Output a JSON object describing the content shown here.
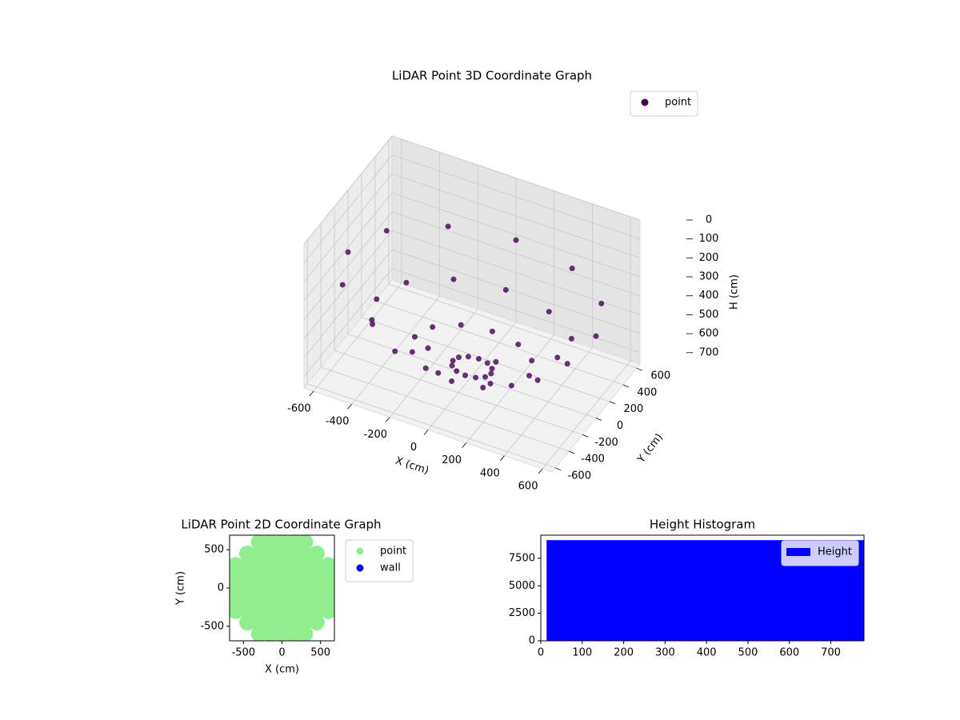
{
  "chart_data": [
    {
      "type": "scatter3d",
      "title": "LiDAR Point 3D Coordinate Graph",
      "xlabel": "X (cm)",
      "ylabel": "Y (cm)",
      "zlabel": "H (cm)",
      "xlim": [
        -650,
        650
      ],
      "ylim": [
        -650,
        650
      ],
      "zlim": [
        760,
        0
      ],
      "xticks": [
        -600,
        -400,
        -200,
        0,
        200,
        400,
        600
      ],
      "yticks": [
        -600,
        -400,
        -200,
        0,
        200,
        400,
        600
      ],
      "zticks": [
        0,
        100,
        200,
        300,
        400,
        500,
        600,
        700
      ],
      "grid": true,
      "legend": "upper right",
      "series": [
        {
          "name": "point",
          "color": "#440154",
          "x": [
            100,
            87,
            50,
            0,
            -50,
            -87,
            -100,
            -87,
            -50,
            0,
            50,
            87,
            300,
            260,
            150,
            0,
            -150,
            -260,
            -300,
            -260,
            -150,
            0,
            150,
            260,
            500,
            433,
            250,
            0,
            -250,
            -433,
            -500,
            -433,
            -250,
            0,
            250,
            433,
            650,
            563,
            325,
            0,
            -325,
            -563,
            -650,
            -563,
            -325,
            0,
            325,
            563
          ],
          "y": [
            0,
            50,
            87,
            100,
            87,
            50,
            0,
            -50,
            -87,
            -100,
            -87,
            -50,
            0,
            150,
            260,
            300,
            260,
            150,
            0,
            -150,
            -260,
            -300,
            -260,
            -150,
            0,
            250,
            433,
            500,
            433,
            250,
            0,
            -250,
            -433,
            -500,
            -433,
            -250,
            0,
            325,
            563,
            650,
            563,
            325,
            0,
            -325,
            -563,
            -650,
            -563,
            -325
          ],
          "z": [
            713,
            713,
            713,
            713,
            713,
            713,
            713,
            713,
            713,
            713,
            713,
            713,
            656,
            656,
            656,
            656,
            656,
            656,
            656,
            656,
            656,
            656,
            656,
            656,
            525,
            525,
            525,
            525,
            525,
            525,
            525,
            525,
            525,
            525,
            525,
            525,
            328,
            328,
            328,
            328,
            328,
            328,
            328,
            328,
            328,
            328,
            328,
            328
          ]
        }
      ]
    },
    {
      "type": "scatter",
      "title": "LiDAR Point 2D Coordinate Graph",
      "xlabel": "X (cm)",
      "ylabel": "Y (cm)",
      "xlim": [
        -680,
        680
      ],
      "ylim": [
        -690,
        690
      ],
      "xticks": [
        -500,
        0,
        500
      ],
      "yticks": [
        -500,
        0,
        500
      ],
      "legend": "outside right",
      "series": [
        {
          "name": "point",
          "color": "#90ee90",
          "x": [
            -300,
            -150,
            0,
            150,
            300,
            -450,
            -300,
            -150,
            0,
            150,
            300,
            450,
            -600,
            -450,
            -300,
            -150,
            0,
            150,
            300,
            450,
            600,
            -600,
            -450,
            -300,
            -150,
            0,
            150,
            300,
            450,
            600,
            -600,
            -450,
            -300,
            -150,
            0,
            150,
            300,
            450,
            600,
            -600,
            -450,
            -300,
            -150,
            0,
            150,
            300,
            450,
            600,
            -600,
            -450,
            -300,
            -150,
            0,
            150,
            300,
            450,
            600,
            -450,
            -300,
            -150,
            0,
            150,
            300,
            450,
            -300,
            -150,
            0,
            150,
            300
          ],
          "y": [
            600,
            600,
            600,
            600,
            600,
            450,
            450,
            450,
            450,
            450,
            450,
            450,
            300,
            300,
            300,
            300,
            300,
            300,
            300,
            300,
            300,
            150,
            150,
            150,
            150,
            150,
            150,
            150,
            150,
            150,
            0,
            0,
            0,
            0,
            0,
            0,
            0,
            0,
            0,
            -150,
            -150,
            -150,
            -150,
            -150,
            -150,
            -150,
            -150,
            -150,
            -300,
            -300,
            -300,
            -300,
            -300,
            -300,
            -300,
            -300,
            -300,
            -450,
            -450,
            -450,
            -450,
            -450,
            -450,
            -450,
            -600,
            -600,
            -600,
            -600,
            -600
          ]
        },
        {
          "name": "wall",
          "color": "#0000ff",
          "x": [],
          "y": []
        }
      ]
    },
    {
      "type": "histogram",
      "title": "Height Histogram",
      "bins": [
        14,
        780
      ],
      "xlim": [
        0,
        780
      ],
      "ylim": [
        0,
        9600
      ],
      "xticks": [
        0,
        100,
        200,
        300,
        400,
        500,
        600,
        700
      ],
      "yticks": [
        0,
        2500,
        5000,
        7500
      ],
      "legend": "upper right",
      "series": [
        {
          "name": "Height",
          "color": "#0000ff",
          "values": [
            9150
          ]
        }
      ]
    }
  ]
}
